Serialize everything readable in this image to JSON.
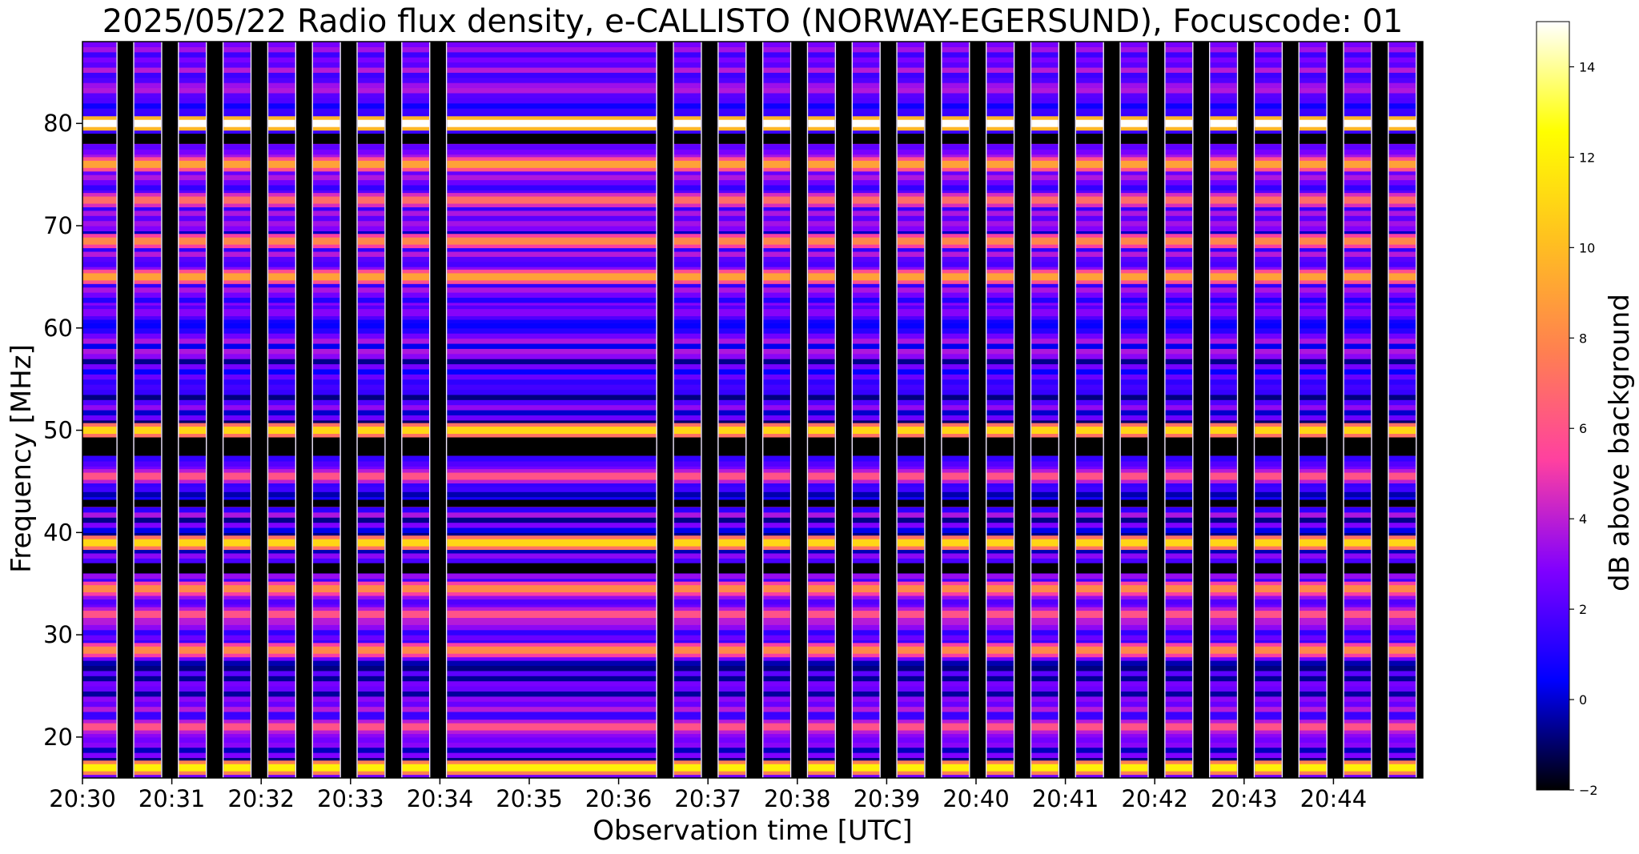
{
  "chart_data": {
    "type": "heatmap",
    "title": "2025/05/22  Radio flux density, e-CALLISTO (NORWAY-EGERSUND), Focuscode: 01",
    "xlabel": "Observation time [UTC]",
    "ylabel": "Frequency [MHz]",
    "x_range_minutes_after_20_30": [
      0,
      15
    ],
    "x_ticks": [
      "20:30",
      "20:31",
      "20:32",
      "20:33",
      "20:34",
      "20:35",
      "20:36",
      "20:37",
      "20:38",
      "20:39",
      "20:40",
      "20:41",
      "20:42",
      "20:43",
      "20:44"
    ],
    "ylim": [
      16,
      88
    ],
    "y_ticks": [
      20,
      30,
      40,
      50,
      60,
      70,
      80
    ],
    "colorbar": {
      "label": "dB above background",
      "range": [
        -2,
        15
      ],
      "ticks": [
        -2,
        0,
        2,
        4,
        6,
        8,
        10,
        12,
        14
      ],
      "colormap": "gnuplot2",
      "colors": [
        "#000000",
        "#0000ff",
        "#8000ff",
        "#ff40a0",
        "#ff8050",
        "#ffc020",
        "#ffff00",
        "#ffffff"
      ]
    },
    "gap_columns_start_minutes": [
      0.38,
      0.88,
      1.38,
      1.88,
      2.38,
      2.88,
      3.38,
      3.88,
      6.42,
      6.92,
      7.42,
      7.92,
      8.42,
      8.92,
      9.42,
      9.92,
      10.42,
      10.92,
      11.42,
      11.92,
      12.42,
      12.92,
      13.42,
      13.92,
      14.42,
      14.92
    ],
    "gap_width_minutes": 0.2,
    "frequency_bands": [
      {
        "freq_mhz": 80,
        "db": 15
      },
      {
        "freq_mhz": 76,
        "db": 9
      },
      {
        "freq_mhz": 72.5,
        "db": 7
      },
      {
        "freq_mhz": 68.5,
        "db": 8
      },
      {
        "freq_mhz": 65,
        "db": 9
      },
      {
        "freq_mhz": 61.5,
        "db": 3
      },
      {
        "freq_mhz": 50,
        "db": 11
      },
      {
        "freq_mhz": 45.5,
        "db": 6
      },
      {
        "freq_mhz": 39,
        "db": 11
      },
      {
        "freq_mhz": 34.5,
        "db": 8
      },
      {
        "freq_mhz": 32,
        "db": 6
      },
      {
        "freq_mhz": 28.5,
        "db": 8
      },
      {
        "freq_mhz": 21,
        "db": 6
      },
      {
        "freq_mhz": 17,
        "db": 12
      }
    ],
    "dark_bands_mhz": [
      [
        78,
        79
      ],
      [
        47.5,
        49.5
      ],
      [
        42.5,
        43.2
      ],
      [
        36,
        37
      ]
    ]
  }
}
